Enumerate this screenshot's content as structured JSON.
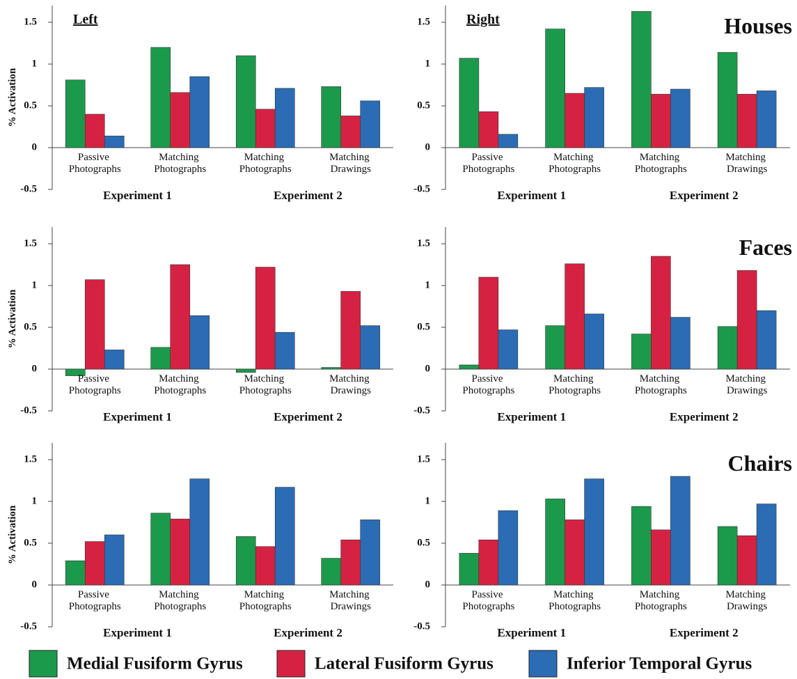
{
  "chart_data": [
    {
      "type": "bar",
      "title": "Left",
      "ylabel": "% Activation",
      "categories": [
        "Passive Photographs",
        "Matching Photographs",
        "Matching Photographs",
        "Matching Drawings"
      ],
      "groups": [
        "Experiment 1",
        "Experiment 2"
      ],
      "series": [
        {
          "name": "Medial Fusiform Gyrus",
          "color": "#1c9a4c",
          "values": [
            0.81,
            1.2,
            1.1,
            0.73
          ]
        },
        {
          "name": "Lateral Fusiform Gyrus",
          "color": "#d62242",
          "values": [
            0.4,
            0.66,
            0.46,
            0.38
          ]
        },
        {
          "name": "Inferior Temporal Gyrus",
          "color": "#2b6cb4",
          "values": [
            0.14,
            0.85,
            0.71,
            0.56
          ]
        }
      ],
      "ylim": [
        -0.5,
        1.7
      ],
      "yticks": [
        -0.5,
        0,
        0.5,
        1,
        1.5
      ]
    },
    {
      "type": "bar",
      "title": "Right",
      "annotation": "Houses",
      "categories": [
        "Passive Photographs",
        "Matching Photographs",
        "Matching Photographs",
        "Matching Drawings"
      ],
      "groups": [
        "Experiment 1",
        "Experiment 2"
      ],
      "series": [
        {
          "color": "#1c9a4c",
          "values": [
            1.07,
            1.42,
            1.63,
            1.14
          ]
        },
        {
          "color": "#d62242",
          "values": [
            0.43,
            0.65,
            0.64,
            0.64
          ]
        },
        {
          "color": "#2b6cb4",
          "values": [
            0.16,
            0.72,
            0.7,
            0.68
          ]
        }
      ],
      "ylim": [
        -0.5,
        1.7
      ],
      "yticks": [
        -0.5,
        0,
        0.5,
        1,
        1.5
      ]
    },
    {
      "type": "bar",
      "ylabel": "% Activation",
      "categories": [
        "Passive Photographs",
        "Matching Photographs",
        "Matching Photographs",
        "Matching Drawings"
      ],
      "groups": [
        "Experiment 1",
        "Experiment 2"
      ],
      "series": [
        {
          "color": "#1c9a4c",
          "values": [
            -0.08,
            0.26,
            -0.04,
            0.02
          ]
        },
        {
          "color": "#d62242",
          "values": [
            1.07,
            1.25,
            1.22,
            0.93
          ]
        },
        {
          "color": "#2b6cb4",
          "values": [
            0.23,
            0.64,
            0.44,
            0.52
          ]
        }
      ],
      "ylim": [
        -0.5,
        1.7
      ],
      "yticks": [
        -0.5,
        0,
        0.5,
        1,
        1.5
      ]
    },
    {
      "type": "bar",
      "annotation": "Faces",
      "categories": [
        "Passive Photographs",
        "Matching Photographs",
        "Matching Photographs",
        "Matching Drawings"
      ],
      "groups": [
        "Experiment 1",
        "Experiment 2"
      ],
      "series": [
        {
          "color": "#1c9a4c",
          "values": [
            0.05,
            0.52,
            0.42,
            0.51
          ]
        },
        {
          "color": "#d62242",
          "values": [
            1.1,
            1.26,
            1.35,
            1.18
          ]
        },
        {
          "color": "#2b6cb4",
          "values": [
            0.47,
            0.66,
            0.62,
            0.7
          ]
        }
      ],
      "ylim": [
        -0.5,
        1.7
      ],
      "yticks": [
        -0.5,
        0,
        0.5,
        1,
        1.5
      ]
    },
    {
      "type": "bar",
      "ylabel": "% Activation",
      "categories": [
        "Passive Photographs",
        "Matching Photographs",
        "Matching Photographs",
        "Matching Drawings"
      ],
      "groups": [
        "Experiment 1",
        "Experiment 2"
      ],
      "series": [
        {
          "color": "#1c9a4c",
          "values": [
            0.29,
            0.86,
            0.58,
            0.32
          ]
        },
        {
          "color": "#d62242",
          "values": [
            0.52,
            0.79,
            0.46,
            0.54
          ]
        },
        {
          "color": "#2b6cb4",
          "values": [
            0.6,
            1.27,
            1.17,
            0.78
          ]
        }
      ],
      "ylim": [
        -0.5,
        1.7
      ],
      "yticks": [
        -0.5,
        0,
        0.5,
        1,
        1.5
      ]
    },
    {
      "type": "bar",
      "annotation": "Chairs",
      "categories": [
        "Passive Photographs",
        "Matching Photographs",
        "Matching Photographs",
        "Matching Drawings"
      ],
      "groups": [
        "Experiment 1",
        "Experiment 2"
      ],
      "series": [
        {
          "color": "#1c9a4c",
          "values": [
            0.38,
            1.03,
            0.94,
            0.7
          ]
        },
        {
          "color": "#d62242",
          "values": [
            0.54,
            0.78,
            0.66,
            0.59
          ]
        },
        {
          "color": "#2b6cb4",
          "values": [
            0.89,
            1.27,
            1.3,
            0.97
          ]
        }
      ],
      "ylim": [
        -0.5,
        1.7
      ],
      "yticks": [
        -0.5,
        0,
        0.5,
        1,
        1.5
      ]
    }
  ]
}
